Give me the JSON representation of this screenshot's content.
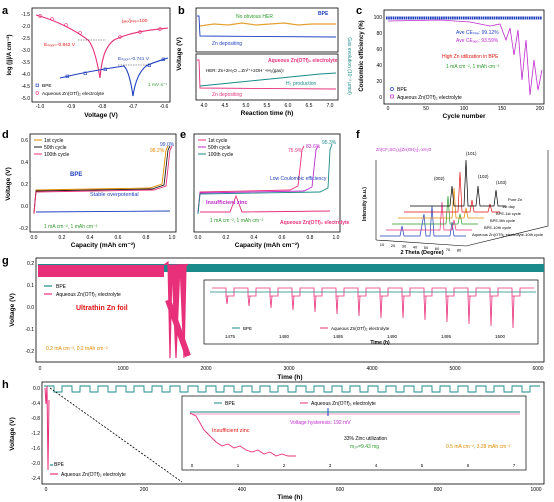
{
  "colors": {
    "bpe": "#1f3fbf",
    "aq": "#e8307a",
    "aqmag": "#c02ad0",
    "teal": "#1a8a8a",
    "red": "#e01010",
    "green": "#2a9a2a",
    "orange": "#e08a00",
    "blue": "#2040e0",
    "black": "#000000"
  },
  "panel_a": {
    "letter": "a",
    "ylabel": "log (|j|/A cm⁻²)",
    "xlabel": "Voltage (V)",
    "xticks": [
      "-1.0",
      "-0.9",
      "-0.8",
      "-0.7",
      "-0.6"
    ],
    "yticks": [
      "-1.5",
      "-2.0",
      "-2.5",
      "-3.0",
      "-3.5",
      "-4.0",
      "-4.5",
      "-5.0"
    ],
    "ann_ecorr_aq": "Eₙₒₓₓ=-0.842 V",
    "ann_ecorr_bpe": "Eₙₒₓₓ=-0.741 V",
    "ann_ratio": "jₐₑₒ/jₙₚₑ=100",
    "ann_rate": "1 mV s⁻¹",
    "legend": [
      "BPE",
      "Aqueous Zn(OTf)₂ electrolyte"
    ]
  },
  "panel_b": {
    "letter": "b",
    "ylabel": "Voltage (V)",
    "xlabel": "Reaction time (h)",
    "ylabel_right": "Gas evolution (10⁻³ μmol)",
    "xticks": [
      "4.0",
      "4.5",
      "5.0",
      "5.5",
      "6.0",
      "6.5",
      "7.0"
    ],
    "top_label_series": "BPE",
    "top_label_1": "No obvious HER",
    "top_label_2": "Zn depositing",
    "bot_label_series": "Aqueous Zn(OTf)₂ electrolyte",
    "bot_eq": "HER: Zn+2H₂O→Zn²⁺+2OH⁻+H₂(gas)↑",
    "bot_label_h2": "H₂ production",
    "bot_label_zn": "Zn depositing"
  },
  "panel_c": {
    "letter": "c",
    "ylabel": "Coulombic efficiency (%)",
    "xlabel": "Cycle number",
    "xticks": [
      "0",
      "50",
      "100",
      "150",
      "200"
    ],
    "yticks": [
      "100",
      "80",
      "60",
      "40",
      "20",
      "0"
    ],
    "ann1": "Ave CEₙₚₑ: 99.12%",
    "ann2": "Ave CEₐₑₒ: 93.59%",
    "ann3": "High Zn utilization in BPE",
    "ann4": "1 mA cm⁻², 1 mAh cm⁻²",
    "legend": [
      "BPE",
      "Aqueous Zn(OTf)₂ electrolyte"
    ]
  },
  "panel_d": {
    "letter": "d",
    "ylabel": "Voltage (V)",
    "xlabel": "Capacity (mAh cm⁻²)",
    "xticks": [
      "0.0",
      "0.2",
      "0.4",
      "0.6",
      "0.8",
      "1.0"
    ],
    "yticks": [
      "0.6",
      "0.4",
      "0.2",
      "0.0",
      "-0.2"
    ],
    "legend": [
      "1st cycle",
      "50th cycle",
      "100th cycle"
    ],
    "ann_bpe": "BPE",
    "ann_stable": "Stable overpotential",
    "ann_cond": "1 mA cm⁻², 1 mAh cm⁻²",
    "ann_ce1": "98.2%",
    "ann_ce2": "99.0%"
  },
  "panel_e": {
    "letter": "e",
    "xlabel": "Capacity (mAh cm⁻²)",
    "xticks": [
      "0.0",
      "0.2",
      "0.4",
      "0.6",
      "0.8",
      "1.0"
    ],
    "legend": [
      "1st cycle",
      "50th cycle",
      "100th cycle"
    ],
    "ann_ce1": "75.9%",
    "ann_ce2": "83.6%",
    "ann_ce3": "95.3%",
    "ann_insuf": "Insufficient zinc",
    "ann_low": "Low Coulombic efficiency",
    "ann_cond": "1 mA cm⁻², 1 mAh cm⁻²",
    "ann_aq": "Aqueous Zn(OTf)₂ electrolyte"
  },
  "panel_f": {
    "letter": "f",
    "xlabel": "2 Theta (Degree)",
    "ylabel": "Intensity (a.u.)",
    "formula": "Zn(CF₃SO₃)₂[Zn(OH)₂]₃·xH₂O",
    "peaks": [
      "(101)",
      "(002)",
      "(102)",
      "(103)"
    ],
    "series": [
      "Pure Zn",
      "1st day",
      "BPE-1st cycle",
      "BPE-5th cycle",
      "BPE-10th cycle",
      "Aqueous Zn(OTf)₂ electrolyte-10th cycle"
    ],
    "xticks": [
      "10",
      "20",
      "30",
      "40",
      "50",
      "60",
      "70",
      "80"
    ]
  },
  "panel_g": {
    "letter": "g",
    "ylabel": "Voltage (V)",
    "xlabel": "Time (h)",
    "xticks": [
      "0",
      "1000",
      "2000",
      "3000",
      "4000",
      "5000",
      "6000"
    ],
    "yticks": [
      "0.2",
      "0.1",
      "0.0",
      "-0.1",
      "-0.2"
    ],
    "legend": [
      "BPE",
      "Aqueous Zn(OTf)₂ electrolyte"
    ],
    "ann_foil": "Ultrathin Zn foil",
    "ann_cond": "0.2 mA cm⁻², 0.2 mAh cm⁻²",
    "inset_xticks": [
      "1475",
      "1480",
      "1485",
      "1490",
      "1495",
      "1500"
    ],
    "inset_xlabel": "Time (h)",
    "inset_legend": [
      "BPE",
      "Aqueous Zn(OTf)₂ electrolyte"
    ]
  },
  "panel_h": {
    "letter": "h",
    "ylabel": "Voltage (V)",
    "xlabel": "Time (h)",
    "xticks": [
      "0",
      "200",
      "400",
      "600",
      "800",
      "1000"
    ],
    "yticks": [
      "0.0",
      "-0.4",
      "-0.8",
      "-1.2",
      "-1.6",
      "-2.0",
      "-2.4"
    ],
    "legend": [
      "BPE",
      "Aqueous Zn(OTf)₂ electrolyte"
    ],
    "inset_legend": [
      "BPE",
      "Aqueous Zn(OTf)₂ electrolyte"
    ],
    "inset_xticks": [
      "0",
      "1",
      "2",
      "3",
      "4",
      "5",
      "6",
      "7"
    ],
    "ann_hyst": "Voltage hysteresis: 192 mV",
    "ann_insuf": "Insufficient zinc",
    "ann_util": "33% Zinc utilization",
    "ann_mass": "m₂ₙ=9.43 mg",
    "ann_cond": "0.5 mA cm⁻², 3.28 mAh cm⁻²"
  }
}
